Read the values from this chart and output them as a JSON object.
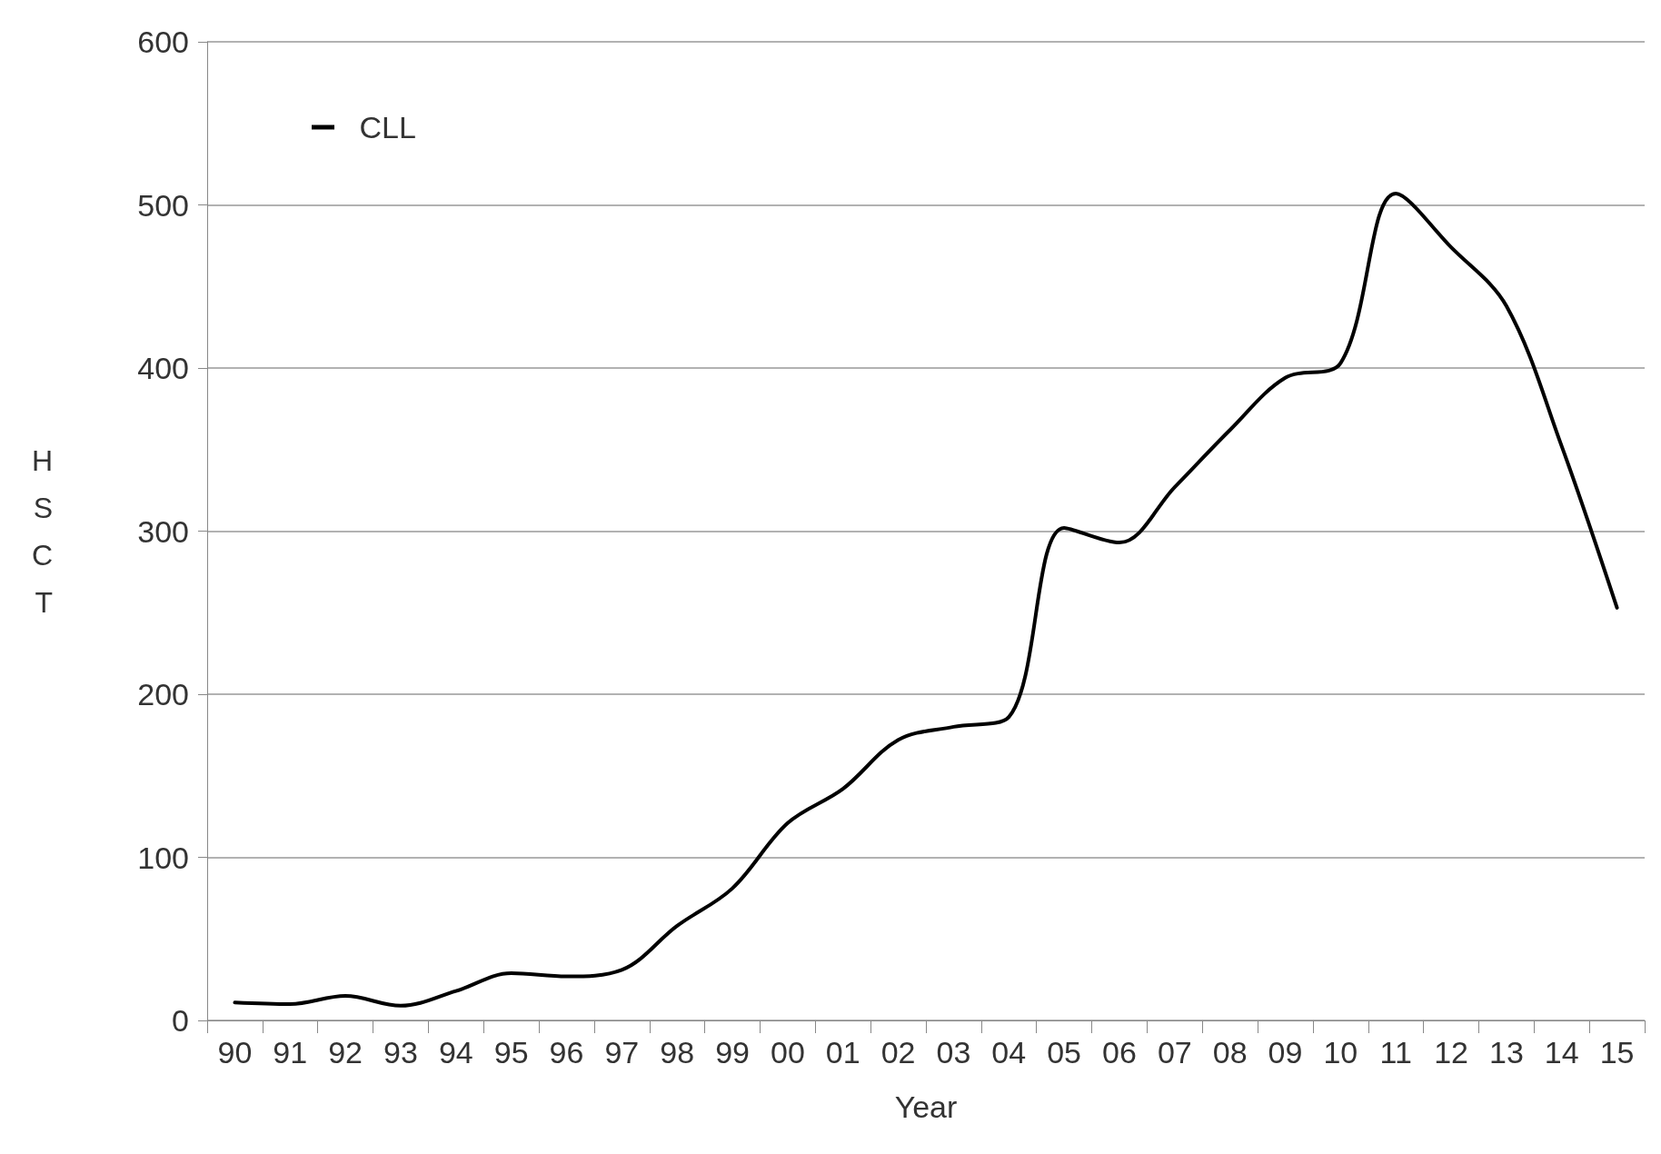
{
  "chart_data": {
    "type": "line",
    "xlabel": "Year",
    "ylabel": "HSCT",
    "categories": [
      "90",
      "91",
      "92",
      "93",
      "94",
      "95",
      "96",
      "97",
      "98",
      "99",
      "00",
      "01",
      "02",
      "03",
      "04",
      "05",
      "06",
      "07",
      "08",
      "09",
      "10",
      "11",
      "12",
      "13",
      "14",
      "15"
    ],
    "series": [
      {
        "name": "CLL",
        "color": "#000000",
        "values": [
          11,
          10,
          15,
          9,
          18,
          29,
          27,
          31,
          58,
          81,
          121,
          142,
          172,
          180,
          186,
          302,
          293,
          327,
          362,
          394,
          403,
          507,
          474,
          438,
          352,
          253
        ]
      }
    ],
    "ylim": [
      0,
      600
    ],
    "yticks": [
      0,
      100,
      200,
      300,
      400,
      500,
      600
    ],
    "grid": "y",
    "legend": "top left",
    "marker": "none",
    "line_style": "solid"
  }
}
